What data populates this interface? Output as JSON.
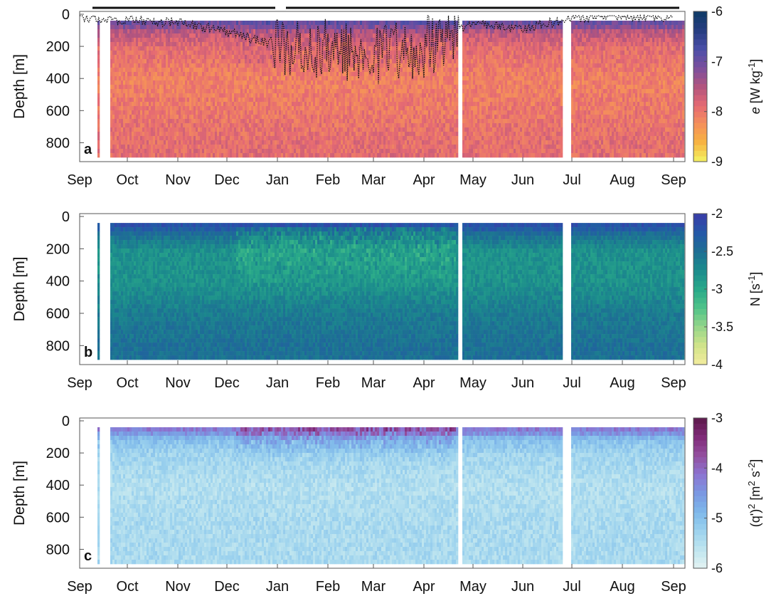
{
  "months": [
    "Sep",
    "Oct",
    "Nov",
    "Dec",
    "Jan",
    "Feb",
    "Mar",
    "Apr",
    "May",
    "Jun",
    "Jul",
    "Aug",
    "Sep"
  ],
  "depth_ticks": [
    "0",
    "200",
    "400",
    "600",
    "800"
  ],
  "ylabel": "Depth [m]",
  "chart_data": [
    {
      "type": "heatmap",
      "panel_label": "a",
      "variable": "e",
      "colorbar_label": "e [W kg-1]",
      "colorbar_label_parts": {
        "italic": "e",
        "unit": " [W kg",
        "sup": "-1",
        "close": "]"
      },
      "clim": [
        -9,
        -6
      ],
      "colorbar_ticks": [
        "-6",
        "-7",
        "-8",
        "-9"
      ],
      "colormap": [
        "#f4f463",
        "#f7b441",
        "#f5905a",
        "#e56a73",
        "#b1547f",
        "#7b4f9d",
        "#4b4fa8",
        "#263d80",
        "#0f3b66"
      ],
      "ylim": [
        0,
        900
      ],
      "xlim": [
        "Sep",
        "Sep"
      ],
      "depth_profile": [
        {
          "depth": 50,
          "value": -7.0
        },
        {
          "depth": 100,
          "value": -7.6
        },
        {
          "depth": 200,
          "value": -7.9
        },
        {
          "depth": 400,
          "value": -8.1
        },
        {
          "depth": 600,
          "value": -8.0
        },
        {
          "depth": 800,
          "value": -7.9
        }
      ],
      "mixed_layer_depth_overlay": [
        {
          "month": "Sep",
          "depth": 20
        },
        {
          "month": "Oct",
          "depth": 35
        },
        {
          "month": "Nov",
          "depth": 50
        },
        {
          "month": "Dec",
          "depth": 110
        },
        {
          "month": "Jan",
          "depth": 200
        },
        {
          "month": "Feb",
          "depth": 230
        },
        {
          "month": "Mar",
          "depth": 240
        },
        {
          "month": "Apr",
          "depth": 200
        },
        {
          "month": "May",
          "depth": 50
        },
        {
          "month": "Jun",
          "depth": 90
        },
        {
          "month": "Jul",
          "depth": 25
        },
        {
          "month": "Aug",
          "depth": 15
        },
        {
          "month": "Sep",
          "depth": 20
        }
      ],
      "top_bars": [
        [
          "Sep",
          "Jan"
        ],
        [
          "Jan",
          "Apr"
        ],
        [
          "Apr",
          "Sep"
        ]
      ]
    },
    {
      "type": "heatmap",
      "panel_label": "b",
      "variable": "N",
      "colorbar_label": "N [s-1]",
      "colorbar_label_parts": {
        "italic": "",
        "unit": "N [s",
        "sup": "-1",
        "close": "]"
      },
      "clim": [
        -4,
        -2
      ],
      "colorbar_ticks": [
        "-2",
        "-2.5",
        "-3",
        "-3.5",
        "-4"
      ],
      "colormap": [
        "#f3ec9e",
        "#d1e48a",
        "#96d58a",
        "#4fc389",
        "#29a989",
        "#1b8b8c",
        "#1d6f94",
        "#2458a8",
        "#3a3ca8"
      ],
      "ylim": [
        0,
        900
      ],
      "xlim": [
        "Sep",
        "Sep"
      ],
      "depth_profile": [
        {
          "depth": 50,
          "value": -2.2
        },
        {
          "depth": 100,
          "value": -2.5
        },
        {
          "depth": 200,
          "value": -2.8
        },
        {
          "depth": 400,
          "value": -2.8
        },
        {
          "depth": 600,
          "value": -2.6
        },
        {
          "depth": 800,
          "value": -2.5
        }
      ]
    },
    {
      "type": "heatmap",
      "panel_label": "c",
      "variable": "(q')^2",
      "colorbar_label": "(q')2 [m2 s-2]",
      "colorbar_label_parts": {
        "italic": "",
        "unit": "(q')",
        "sup": "2",
        "close": " [m2 s-2]"
      },
      "clim": [
        -6,
        -3
      ],
      "colorbar_ticks": [
        "-3",
        "-4",
        "-5",
        "-6"
      ],
      "colormap": [
        "#e3f3f2",
        "#bfe5ef",
        "#9cd2ee",
        "#7eb8ea",
        "#7a98e2",
        "#8c74d1",
        "#93509f",
        "#7f2a78",
        "#5c1a4a"
      ],
      "ylim": [
        0,
        900
      ],
      "xlim": [
        "Sep",
        "Sep"
      ],
      "depth_profile": [
        {
          "depth": 50,
          "value": -4.2
        },
        {
          "depth": 100,
          "value": -5.0
        },
        {
          "depth": 200,
          "value": -5.3
        },
        {
          "depth": 400,
          "value": -5.5
        },
        {
          "depth": 600,
          "value": -5.4
        },
        {
          "depth": 800,
          "value": -5.4
        }
      ]
    }
  ]
}
